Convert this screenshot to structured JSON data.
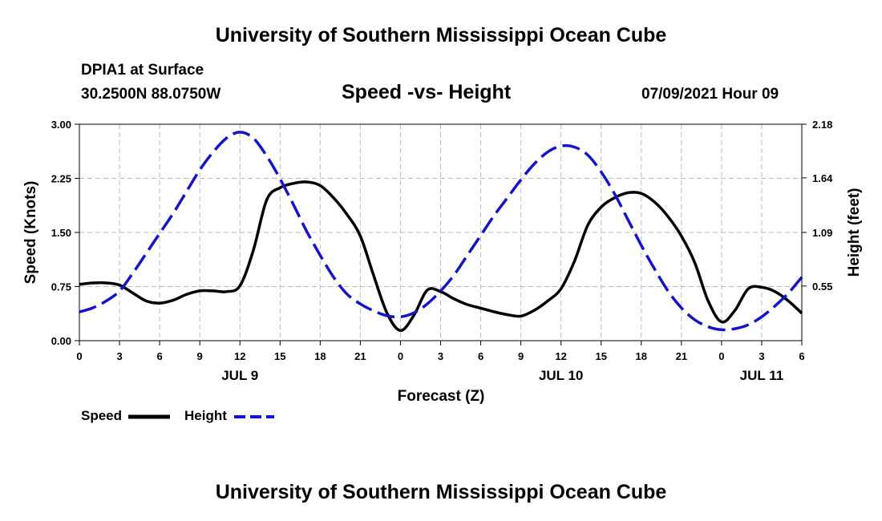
{
  "header": {
    "title": "University of Southern Mississippi Ocean Cube",
    "station": "DPIA1 at Surface",
    "coordinates": "30.2500N  88.0750W",
    "chart_subtitle": "Speed -vs- Height",
    "datetime": "07/09/2021 Hour 09"
  },
  "footer": {
    "title": "University of Southern Mississippi Ocean Cube"
  },
  "colors": {
    "speed": "#000000",
    "height": "#1414c8",
    "grid": "#bbbbbb"
  },
  "chart_data": {
    "type": "line",
    "title": "Speed -vs- Height",
    "xlabel": "Forecast (Z)",
    "ylabel": "Speed (Knots)",
    "y2label": "Height (feet)",
    "x_units": "hours from 00Z JUL 9",
    "xlim": [
      0,
      54
    ],
    "ylim": [
      0,
      3.0
    ],
    "y2lim": [
      0.0,
      2.18
    ],
    "grid": true,
    "x_ticks": [
      0,
      3,
      6,
      9,
      12,
      15,
      18,
      21,
      24,
      27,
      30,
      33,
      36,
      39,
      42,
      45,
      48,
      51,
      54
    ],
    "x_tick_labels": [
      "0",
      "3",
      "6",
      "9",
      "12",
      "15",
      "18",
      "21",
      "0",
      "3",
      "6",
      "9",
      "12",
      "15",
      "18",
      "21",
      "0",
      "3",
      "6"
    ],
    "day_labels": [
      {
        "x": 12,
        "label": "JUL 9"
      },
      {
        "x": 36,
        "label": "JUL 10"
      },
      {
        "x": 51,
        "label": "JUL 11"
      }
    ],
    "y_ticks": [
      0,
      0.75,
      1.5,
      2.25,
      3.0
    ],
    "y_tick_labels": [
      "0.00",
      "0.75",
      "1.50",
      "2.25",
      "3.00"
    ],
    "y2_ticks": [
      0.55,
      1.09,
      1.64,
      2.18
    ],
    "y2_tick_labels": [
      "0.55",
      "1.09",
      "1.64",
      "2.18"
    ],
    "legend": [
      {
        "name": "Speed",
        "style": "solid"
      },
      {
        "name": "Height",
        "style": "dashed"
      }
    ],
    "series": [
      {
        "name": "Speed",
        "axis": "left",
        "style": "solid",
        "x": [
          0,
          1,
          2,
          3,
          4,
          5,
          6,
          7,
          8,
          9,
          10,
          11,
          12,
          13,
          14,
          15,
          16,
          17,
          18,
          19,
          20,
          21,
          22,
          23,
          24,
          25,
          26,
          27,
          28,
          29,
          30,
          31,
          32,
          33,
          34,
          35,
          36,
          37,
          38,
          39,
          40,
          41,
          42,
          43,
          44,
          45,
          46,
          47,
          48,
          49,
          50,
          51,
          52,
          53,
          54
        ],
        "values": [
          0.78,
          0.8,
          0.8,
          0.77,
          0.66,
          0.55,
          0.52,
          0.56,
          0.64,
          0.69,
          0.69,
          0.68,
          0.76,
          1.25,
          1.95,
          2.12,
          2.18,
          2.2,
          2.15,
          1.98,
          1.75,
          1.45,
          0.9,
          0.38,
          0.14,
          0.35,
          0.7,
          0.68,
          0.58,
          0.5,
          0.45,
          0.4,
          0.36,
          0.34,
          0.42,
          0.55,
          0.72,
          1.1,
          1.6,
          1.85,
          1.98,
          2.05,
          2.04,
          1.92,
          1.72,
          1.45,
          1.08,
          0.55,
          0.26,
          0.42,
          0.72,
          0.74,
          0.68,
          0.55,
          0.38
        ]
      },
      {
        "name": "Height",
        "axis": "right",
        "style": "dashed",
        "x": [
          0,
          1,
          2,
          3,
          4,
          5,
          6,
          7,
          8,
          9,
          10,
          11,
          12,
          13,
          14,
          15,
          16,
          17,
          18,
          19,
          20,
          21,
          22,
          23,
          24,
          25,
          26,
          27,
          28,
          29,
          30,
          31,
          32,
          33,
          34,
          35,
          36,
          37,
          38,
          39,
          40,
          41,
          42,
          43,
          44,
          45,
          46,
          47,
          48,
          49,
          50,
          51,
          52,
          53,
          54
        ],
        "values": [
          0.29,
          0.33,
          0.4,
          0.5,
          0.68,
          0.88,
          1.08,
          1.28,
          1.5,
          1.72,
          1.9,
          2.04,
          2.1,
          2.04,
          1.86,
          1.63,
          1.37,
          1.1,
          0.86,
          0.64,
          0.47,
          0.37,
          0.3,
          0.25,
          0.24,
          0.28,
          0.37,
          0.5,
          0.66,
          0.86,
          1.06,
          1.26,
          1.44,
          1.62,
          1.78,
          1.9,
          1.96,
          1.95,
          1.87,
          1.7,
          1.48,
          1.22,
          0.96,
          0.72,
          0.5,
          0.33,
          0.21,
          0.14,
          0.11,
          0.12,
          0.16,
          0.24,
          0.35,
          0.48,
          0.64
        ]
      }
    ]
  }
}
